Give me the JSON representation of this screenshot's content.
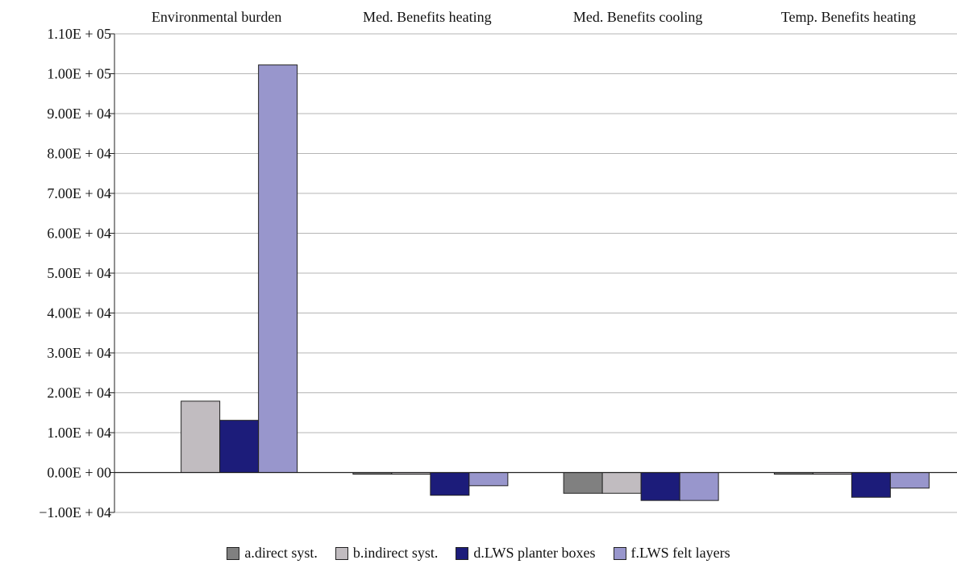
{
  "chart_data": {
    "type": "bar",
    "categories": [
      "Environmental burden",
      "Med. Benefits heating",
      "Med. Benefits cooling",
      "Temp. Benefits heating"
    ],
    "series": [
      {
        "name": "a.direct syst.",
        "color": "#808080",
        "values": [
          0,
          -400,
          -5200,
          -400
        ]
      },
      {
        "name": "b.indirect syst.",
        "color": "#c1bcc0",
        "values": [
          17900,
          -400,
          -5200,
          -400
        ]
      },
      {
        "name": "d.LWS planter boxes",
        "color": "#1c1c7a",
        "values": [
          13100,
          -5700,
          -7000,
          -6200
        ]
      },
      {
        "name": "f.LWS felt layers",
        "color": "#9896cc",
        "values": [
          102200,
          -3300,
          -7000,
          -3900
        ]
      }
    ],
    "ylim": [
      -10000,
      110000
    ],
    "y_ticks": [
      -10000,
      0,
      10000,
      20000,
      30000,
      40000,
      50000,
      60000,
      70000,
      80000,
      90000,
      100000,
      110000
    ],
    "y_tick_labels": [
      "−1.00E + 04",
      "0.00E + 00",
      "1.00E + 04",
      "2.00E + 04",
      "3.00E + 04",
      "4.00E + 04",
      "5.00E + 04",
      "6.00E + 04",
      "7.00E + 04",
      "8.00E + 04",
      "9.00E + 04",
      "1.00E + 05",
      "1.10E + 05"
    ],
    "grid": true,
    "legend_position": "bottom"
  }
}
